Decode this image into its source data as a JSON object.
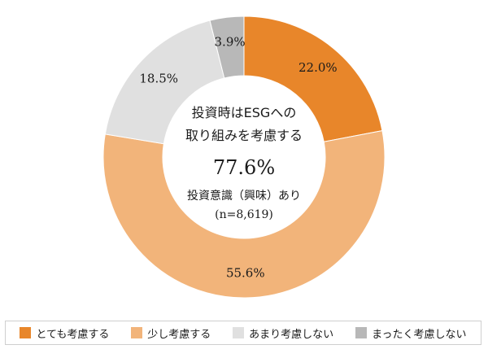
{
  "chart_data": {
    "type": "pie",
    "donut": true,
    "title": "",
    "slices": [
      {
        "label": "とても考慮する",
        "value": 22.0,
        "display": "22.0%",
        "color": "#e8862a"
      },
      {
        "label": "少し考慮する",
        "value": 55.6,
        "display": "55.6%",
        "color": "#f2b47a"
      },
      {
        "label": "あまり考慮しない",
        "value": 18.5,
        "display": "18.5%",
        "color": "#e0e0e0"
      },
      {
        "label": "まったく考慮しない",
        "value": 3.9,
        "display": "3.9%",
        "color": "#b8b8b8"
      }
    ],
    "center": {
      "line1": "投資時はESGへの",
      "line2": "取り組みを考慮する",
      "value": "77.6%",
      "line3": "投資意識（興味）あり",
      "line4": "(n=8,619)"
    }
  },
  "legend": {
    "items": [
      {
        "label": "とても考慮する",
        "color": "#e8862a"
      },
      {
        "label": "少し考慮する",
        "color": "#f2b47a"
      },
      {
        "label": "あまり考慮しない",
        "color": "#e0e0e0"
      },
      {
        "label": "まったく考慮しない",
        "color": "#b8b8b8"
      }
    ]
  }
}
